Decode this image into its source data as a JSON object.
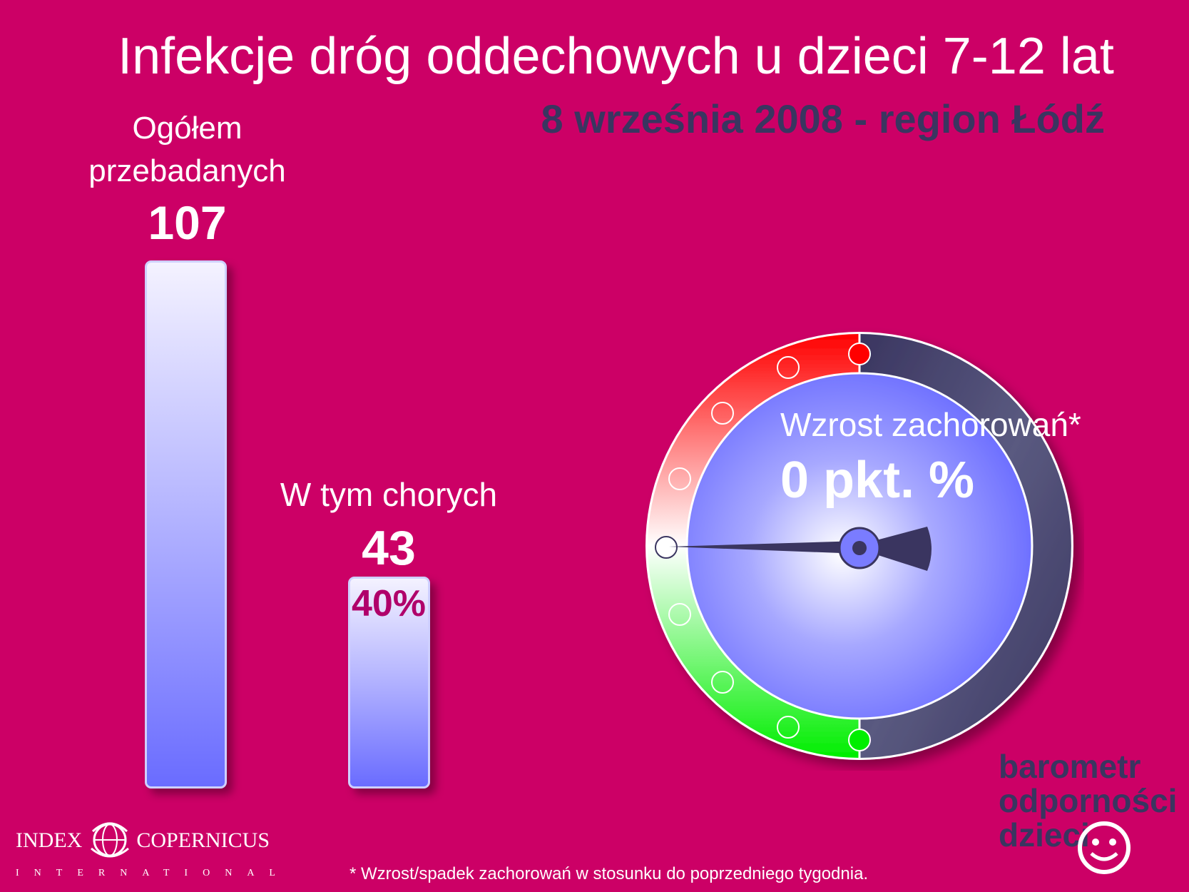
{
  "title": "Infekcje dróg oddechowych u dzieci 7-12 lat",
  "subtitle": "8 września 2008 - region Łódź",
  "total": {
    "label": "Ogółem przebadanych",
    "value": "107"
  },
  "sick": {
    "label": "W tym chorych",
    "value": "43",
    "percent": "40%"
  },
  "chart_data": {
    "type": "bar",
    "categories": [
      "Ogółem przebadanych",
      "W tym chorych"
    ],
    "values": [
      107,
      43
    ]
  },
  "gauge": {
    "label": "Wzrost zachorowań*",
    "value_text": "0 pkt. %",
    "value": 0,
    "colors": {
      "increase": "#ff0000",
      "decrease": "#00ee00",
      "neutral": "#ffffff",
      "face": "#7a7cff",
      "rim": "#3a3560"
    }
  },
  "footnote": "* Wzrost/spadek zachorowań w stosunku do poprzedniego tygodnia.",
  "brand": {
    "line1": "barometr",
    "line2": "odporności",
    "line3": "dzieci",
    "icon": "smiley-icon"
  },
  "logo": {
    "name_left": "INDEX",
    "name_right": "COPERNICUS",
    "sub": "INTERNATIONAL",
    "icon": "globe-icon"
  }
}
